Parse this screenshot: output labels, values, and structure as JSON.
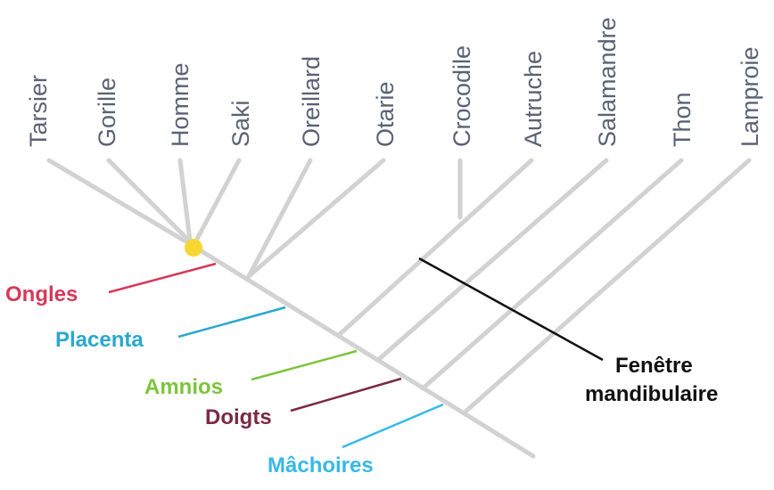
{
  "taxa": [
    "Tarsier",
    "Gorille",
    "Homme",
    "Saki",
    "Oreillard",
    "Otarie",
    "Crocodile",
    "Autruche",
    "Salamandre",
    "Thon",
    "Lamproie"
  ],
  "traits": [
    {
      "label": "Ongles",
      "color": "#d6395a"
    },
    {
      "label": "Placenta",
      "color": "#2aa8cc"
    },
    {
      "label": "Amnios",
      "color": "#7cc43a"
    },
    {
      "label": "Doigts",
      "color": "#7b2a43"
    },
    {
      "label": "Mâchoires",
      "color": "#37b8e8"
    }
  ],
  "apomorphy": {
    "label_line1": "Fenêtre",
    "label_line2": "mandibulaire",
    "color": "#111111"
  },
  "node_marker_color": "#f7d731",
  "branch_color": "#d2d2d2"
}
